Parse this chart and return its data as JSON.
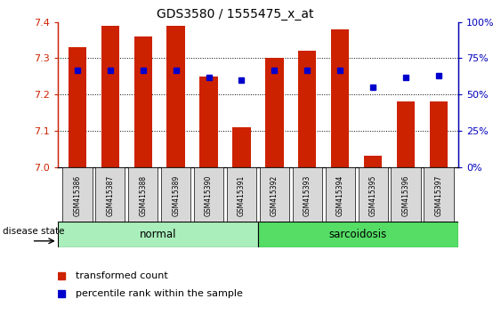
{
  "title": "GDS3580 / 1555475_x_at",
  "samples": [
    "GSM415386",
    "GSM415387",
    "GSM415388",
    "GSM415389",
    "GSM415390",
    "GSM415391",
    "GSM415392",
    "GSM415393",
    "GSM415394",
    "GSM415395",
    "GSM415396",
    "GSM415397"
  ],
  "red_values": [
    7.33,
    7.39,
    7.36,
    7.39,
    7.25,
    7.11,
    7.3,
    7.32,
    7.38,
    7.03,
    7.18,
    7.18
  ],
  "blue_values": [
    67,
    67,
    67,
    67,
    62,
    60,
    67,
    67,
    67,
    55,
    62,
    63
  ],
  "ylim_left": [
    7.0,
    7.4
  ],
  "ylim_right": [
    0,
    100
  ],
  "yticks_left": [
    7.0,
    7.1,
    7.2,
    7.3,
    7.4
  ],
  "yticks_right": [
    0,
    25,
    50,
    75,
    100
  ],
  "ytick_labels_right": [
    "0%",
    "25%",
    "50%",
    "75%",
    "100%"
  ],
  "bar_color": "#CC2200",
  "dot_color": "#0000CC",
  "bar_width": 0.55,
  "ax_left_color": "#CC2200",
  "ax_right_color": "#0000BB",
  "disease_state_label": "disease state",
  "normal_color": "#AAEEBB",
  "sarc_color": "#55DD66",
  "legend_red_label": "transformed count",
  "legend_blue_label": "percentile rank within the sample",
  "grid_yticks": [
    7.1,
    7.2,
    7.3
  ]
}
